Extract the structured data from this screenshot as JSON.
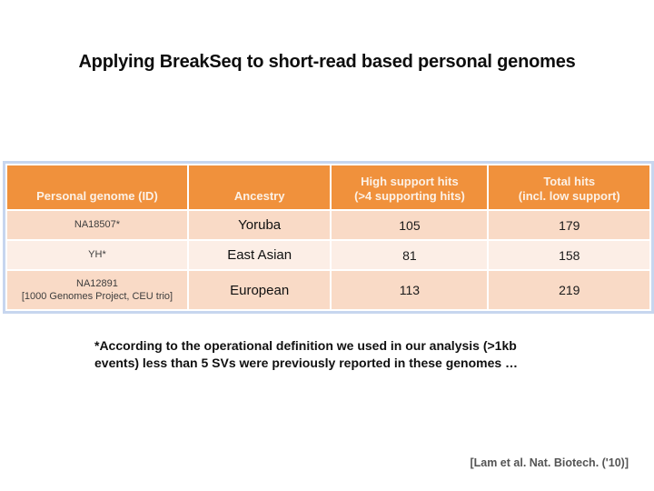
{
  "slide": {
    "title": "Applying BreakSeq to short-read based personal genomes",
    "footnote": "*According to the operational definition we used in our analysis (>1kb\nevents) less than 5 SVs were previously reported in these genomes …",
    "citation": "[Lam et al. Nat. Biotech. ('10)]"
  },
  "table": {
    "col_headers": [
      "Personal genome (ID)",
      "Ancestry",
      "High support hits\n(>4 supporting hits)",
      "Total hits\n(incl. low support)"
    ],
    "rows": [
      {
        "id": "NA18507*",
        "id_note": "",
        "ancestry": "Yoruba",
        "high_support_hits": "105",
        "total_hits": "179"
      },
      {
        "id": "YH*",
        "id_note": "",
        "ancestry": "East Asian",
        "high_support_hits": "81",
        "total_hits": "158"
      },
      {
        "id": "NA12891",
        "id_note": "[1000 Genomes Project, CEU trio]",
        "ancestry": "European",
        "high_support_hits": "113",
        "total_hits": "219"
      }
    ]
  },
  "colors": {
    "header_orange": "#F0913C",
    "row_peach": "#F9DAC6",
    "row_light": "#FCEEE6",
    "table_border": "#C7D6EF",
    "header_text": "#FCF1E6",
    "citation_gray": "#545454"
  }
}
